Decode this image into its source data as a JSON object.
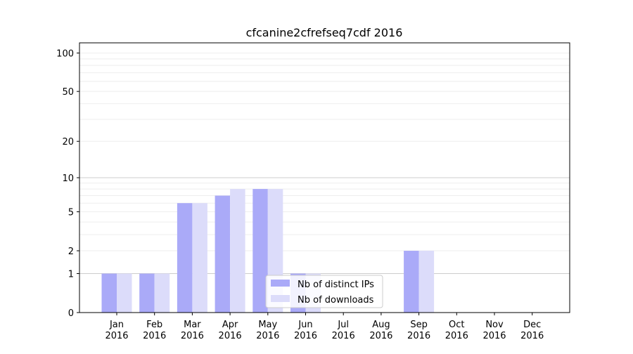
{
  "chart_data": {
    "type": "bar",
    "title": "cfcanine2cfrefseq7cdf 2016",
    "xlabel": "",
    "ylabel": "",
    "yscale": "log(1+y)",
    "ylim": [
      0,
      120
    ],
    "yticks": [
      0,
      1,
      2,
      5,
      10,
      20,
      50,
      100
    ],
    "ytick_labels": [
      "0",
      "1",
      "2",
      "5",
      "10",
      "20",
      "50",
      "100"
    ],
    "categories": [
      "Jan\n2016",
      "Feb\n2016",
      "Mar\n2016",
      "Apr\n2016",
      "May\n2016",
      "Jun\n2016",
      "Jul\n2016",
      "Aug\n2016",
      "Sep\n2016",
      "Oct\n2016",
      "Nov\n2016",
      "Dec\n2016"
    ],
    "series": [
      {
        "name": "Nb of distinct IPs",
        "color": "#aaaaf8",
        "values": [
          1,
          1,
          6,
          7,
          8,
          1,
          0,
          0,
          2,
          0,
          0,
          0
        ]
      },
      {
        "name": "Nb of downloads",
        "color": "#dcdcfa",
        "values": [
          1,
          1,
          6,
          8,
          8,
          1,
          0,
          0,
          2,
          0,
          0,
          0
        ]
      }
    ],
    "grid": {
      "major_lines": [
        1,
        10
      ],
      "major_color": "#cccccc",
      "minor_color": "#eeeeee"
    },
    "legend": "bottom-center"
  }
}
